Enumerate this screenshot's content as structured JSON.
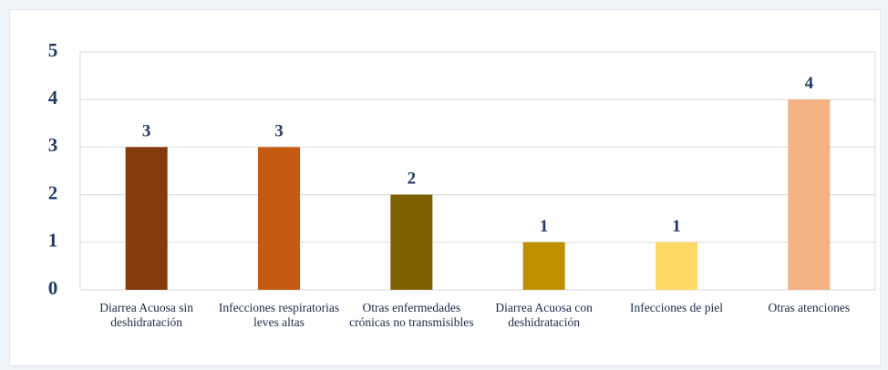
{
  "chart_data": {
    "type": "bar",
    "categories": [
      "Diarrea Acuosa sin deshidratación",
      "Infecciones respiratorias leves altas",
      "Otras enfermedades crónicas no transmisibles",
      "Diarrea Acuosa con deshidratación",
      "Infecciones de piel",
      "Otras atenciones"
    ],
    "values": [
      3,
      3,
      2,
      1,
      1,
      4
    ],
    "colors": [
      "#843c0c",
      "#c55a11",
      "#7f6000",
      "#bf9000",
      "#ffd966",
      "#f4b183"
    ],
    "ylim": [
      0,
      5
    ],
    "yticks": [
      0,
      1,
      2,
      3,
      4,
      5
    ],
    "grid": true
  }
}
